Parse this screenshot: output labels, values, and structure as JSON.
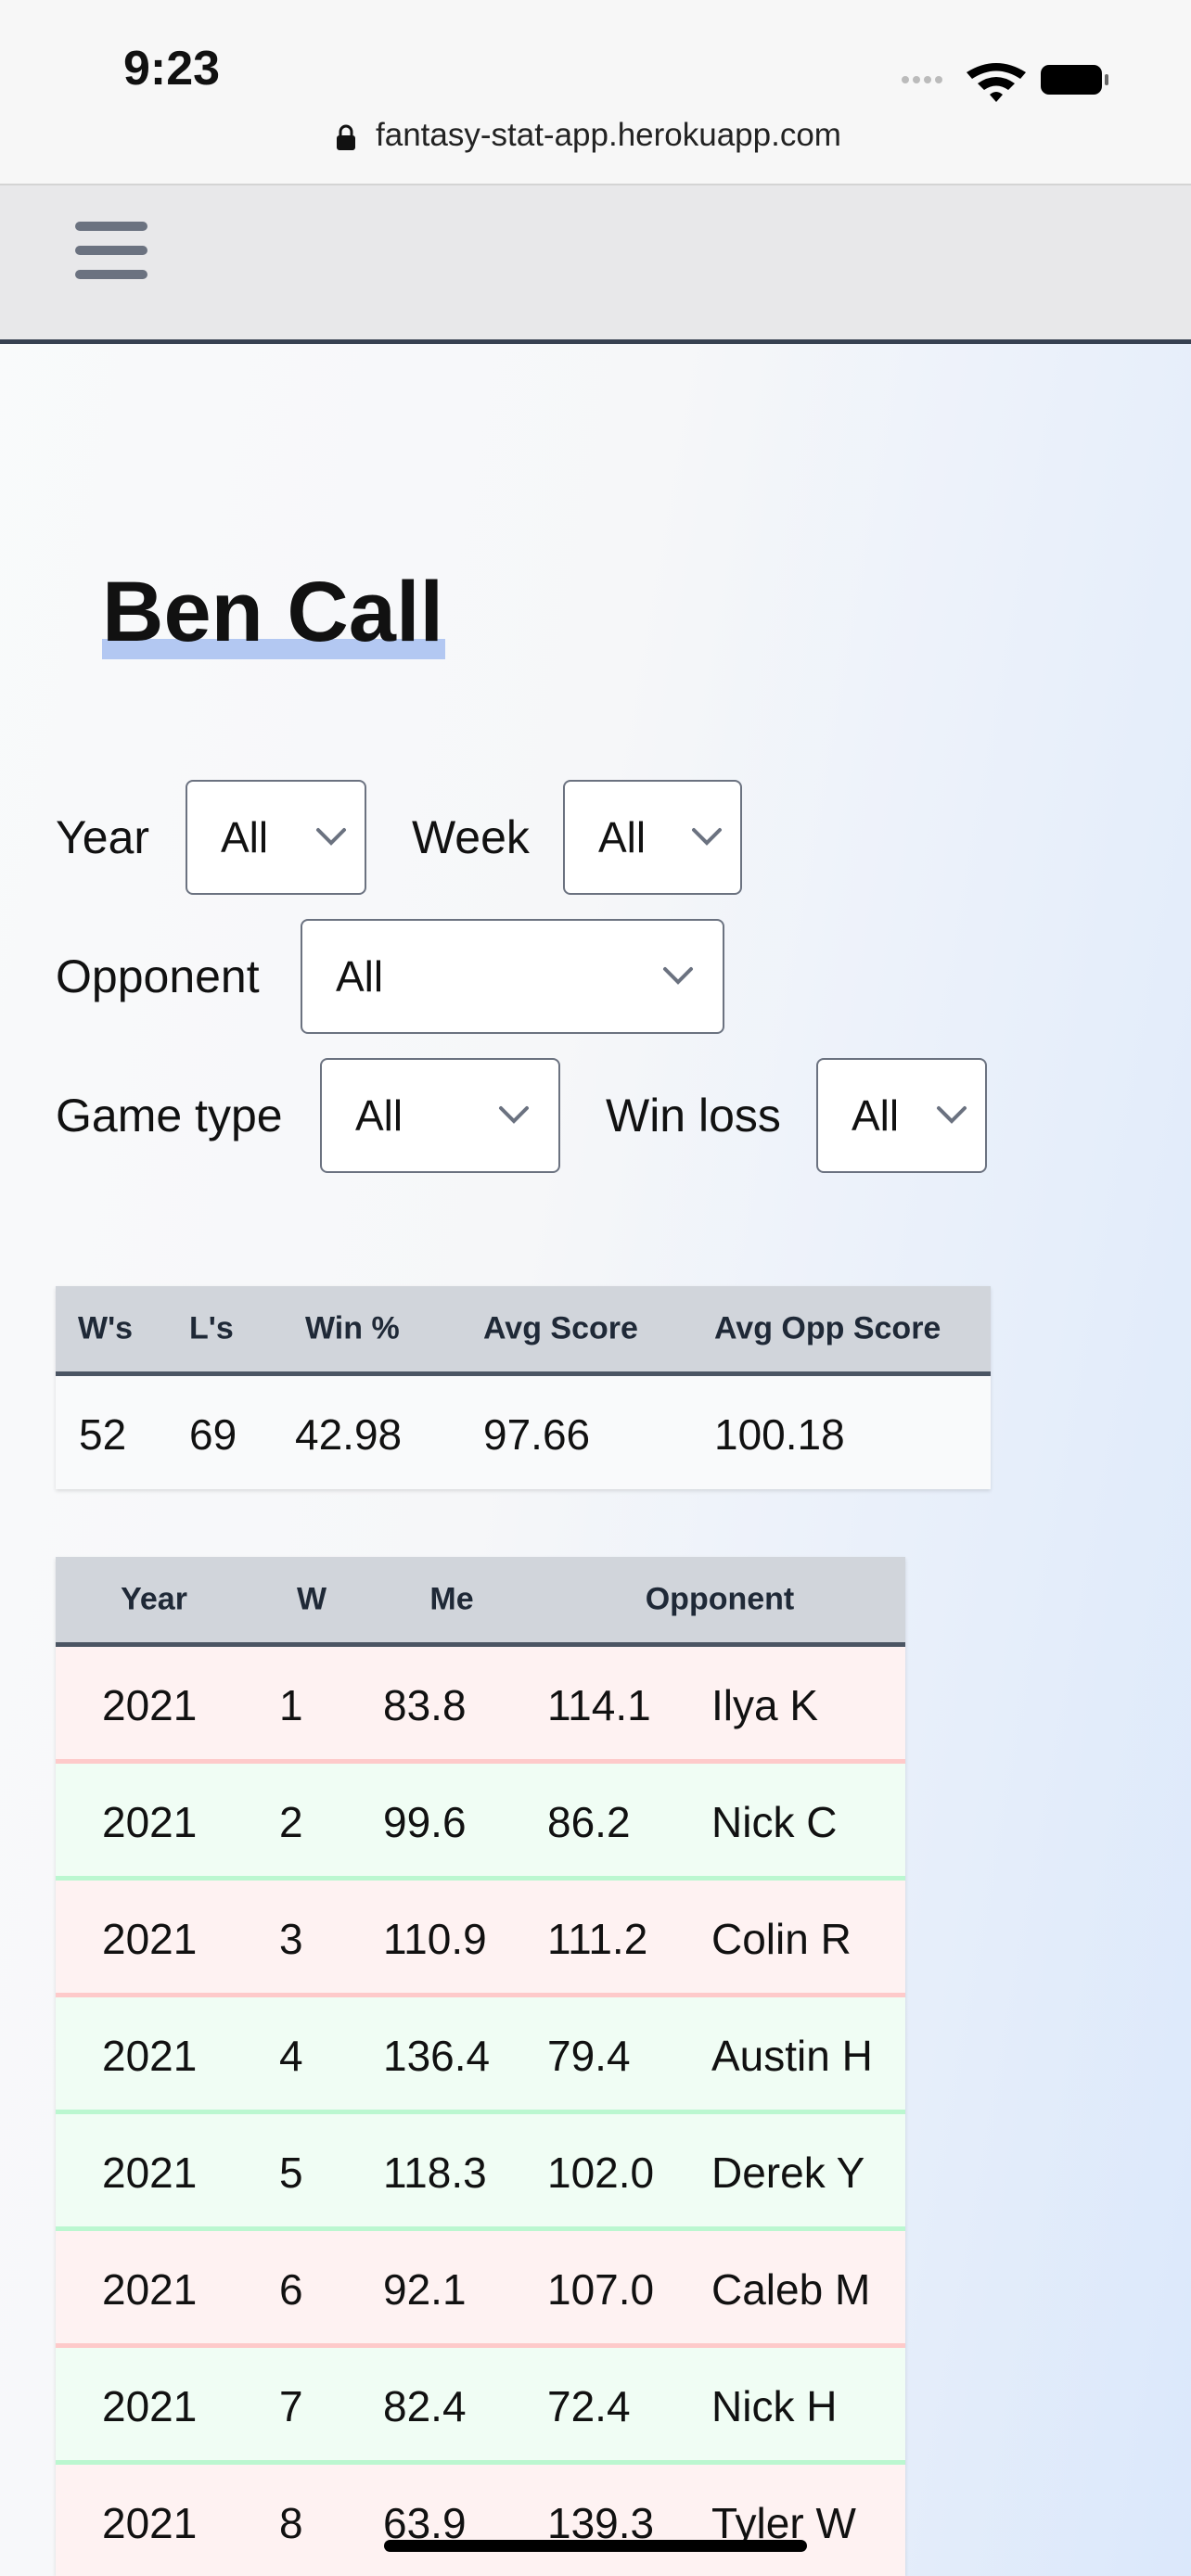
{
  "status_bar": {
    "time": "9:23"
  },
  "browser": {
    "url": "fantasy-stat-app.herokuapp.com"
  },
  "page": {
    "title": "Ben Call"
  },
  "filters": [
    {
      "label": "Year",
      "value": "All"
    },
    {
      "label": "Week",
      "value": "All"
    },
    {
      "label": "Opponent",
      "value": "All"
    },
    {
      "label": "Game type",
      "value": "All"
    },
    {
      "label": "Win loss",
      "value": "All"
    }
  ],
  "summary": {
    "columns": [
      "W's",
      "L's",
      "Win %",
      "Avg Score",
      "Avg Opp Score"
    ],
    "rows": [
      [
        "52",
        "69",
        "42.98",
        "97.66",
        "100.18"
      ]
    ]
  },
  "games": {
    "columns": [
      "Year",
      "W",
      "Me",
      "Opponent"
    ],
    "rows": [
      [
        "2021",
        "1",
        "83.8",
        "114.1",
        "Ilya K"
      ],
      [
        "2021",
        "2",
        "99.6",
        "86.2",
        "Nick C"
      ],
      [
        "2021",
        "3",
        "110.9",
        "111.2",
        "Colin R"
      ],
      [
        "2021",
        "4",
        "136.4",
        "79.4",
        "Austin H"
      ],
      [
        "2021",
        "5",
        "118.3",
        "102.0",
        "Derek Y"
      ],
      [
        "2021",
        "6",
        "92.1",
        "107.0",
        "Caleb M"
      ],
      [
        "2021",
        "7",
        "82.4",
        "72.4",
        "Nick H"
      ],
      [
        "2021",
        "8",
        "63.9",
        "139.3",
        "Tyler W"
      ]
    ]
  }
}
